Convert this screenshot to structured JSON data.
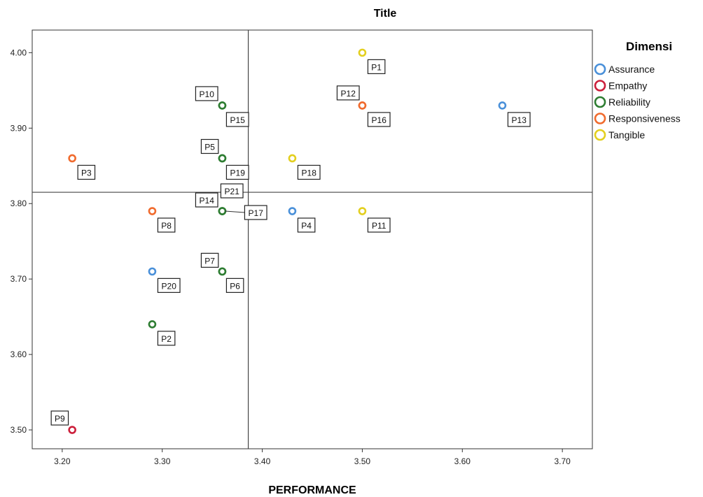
{
  "chart_data": {
    "type": "scatter",
    "title": "Title",
    "xlabel": "PERFORMANCE",
    "ylabel": "",
    "xlim": [
      3.17,
      3.73
    ],
    "ylim": [
      3.475,
      4.03
    ],
    "x_ticks": [
      "3.20",
      "3.30",
      "3.40",
      "3.50",
      "3.60",
      "3.70"
    ],
    "y_ticks": [
      "3.50",
      "3.60",
      "3.70",
      "3.80",
      "3.90",
      "4.00"
    ],
    "reference_lines": {
      "x": 3.386,
      "y": 3.815
    },
    "legend_title": "Dimensi",
    "legend_position": "right",
    "series": [
      {
        "name": "Assurance",
        "color": "#4a90d9",
        "points": [
          {
            "label": "P13",
            "x": 3.64,
            "y": 3.93
          },
          {
            "label": "P4",
            "x": 3.43,
            "y": 3.79
          },
          {
            "label": "P20",
            "x": 3.29,
            "y": 3.71
          }
        ]
      },
      {
        "name": "Empathy",
        "color": "#cc1f3b",
        "points": [
          {
            "label": "P9",
            "x": 3.21,
            "y": 3.5
          }
        ]
      },
      {
        "name": "Reliability",
        "color": "#2e7d32",
        "points": [
          {
            "label": "P15",
            "x": 3.36,
            "y": 3.93
          },
          {
            "label": "P10",
            "x": 3.36,
            "y": 3.93
          },
          {
            "label": "P5",
            "x": 3.36,
            "y": 3.86
          },
          {
            "label": "P19",
            "x": 3.36,
            "y": 3.86
          },
          {
            "label": "P21",
            "x": 3.36,
            "y": 3.79
          },
          {
            "label": "P14",
            "x": 3.36,
            "y": 3.79
          },
          {
            "label": "P17",
            "x": 3.36,
            "y": 3.79
          },
          {
            "label": "P7",
            "x": 3.36,
            "y": 3.71
          },
          {
            "label": "P6",
            "x": 3.36,
            "y": 3.71
          },
          {
            "label": "P2",
            "x": 3.29,
            "y": 3.64
          }
        ]
      },
      {
        "name": "Responsiveness",
        "color": "#f06b2e",
        "points": [
          {
            "label": "P12",
            "x": 3.5,
            "y": 3.93
          },
          {
            "label": "P16",
            "x": 3.5,
            "y": 3.93
          },
          {
            "label": "P3",
            "x": 3.21,
            "y": 3.86
          },
          {
            "label": "P8",
            "x": 3.29,
            "y": 3.79
          }
        ]
      },
      {
        "name": "Tangible",
        "color": "#e3cf1f",
        "points": [
          {
            "label": "P1",
            "x": 3.5,
            "y": 4.0
          },
          {
            "label": "P18",
            "x": 3.43,
            "y": 3.86
          },
          {
            "label": "P11",
            "x": 3.5,
            "y": 3.79
          }
        ]
      }
    ]
  }
}
